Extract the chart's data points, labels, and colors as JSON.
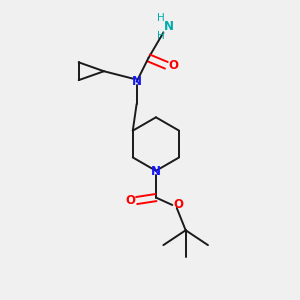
{
  "bg_color": "#f0f0f0",
  "bond_color": "#1a1a1a",
  "N_color": "#1414ff",
  "O_color": "#ff0000",
  "NH2_color": "#00aaaa",
  "figsize": [
    3.0,
    3.0
  ],
  "dpi": 100,
  "xlim": [
    0,
    10
  ],
  "ylim": [
    0,
    10
  ],
  "lw": 1.4,
  "fs": 8.5
}
